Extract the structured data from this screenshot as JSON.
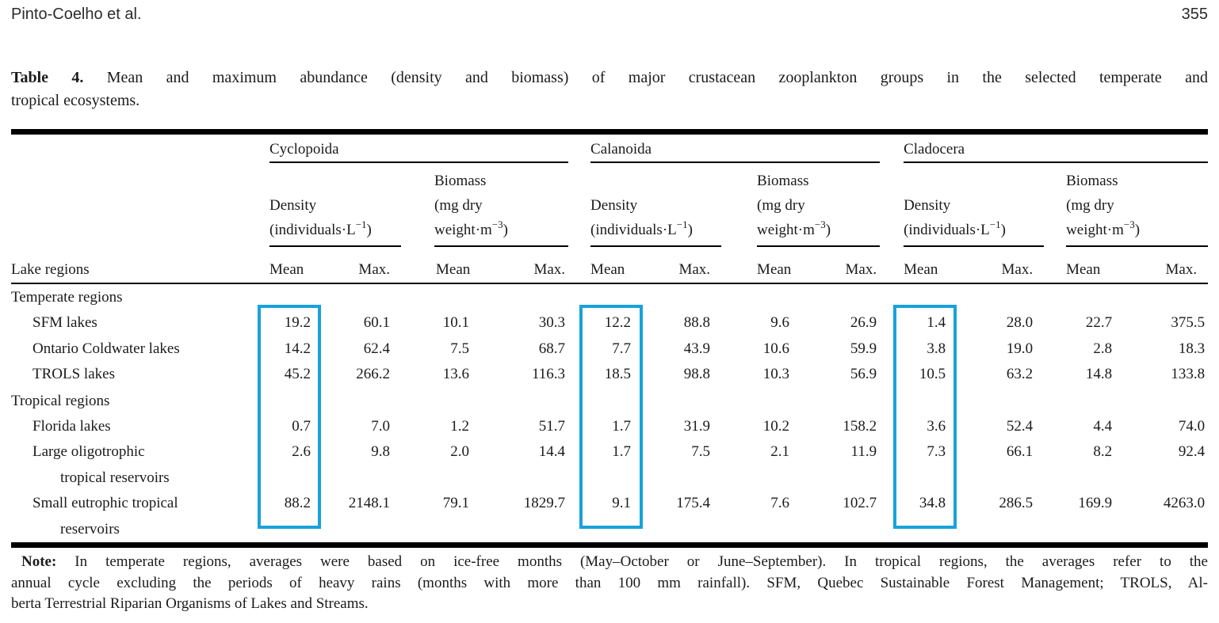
{
  "page": {
    "running_head": "Pinto-Coelho et al.",
    "page_number": "355"
  },
  "caption": {
    "label": "Table 4.",
    "line1_rest": " Mean and maximum abundance (density and biomass) of major crustacean zooplankton groups in the selected temperate and",
    "line2": "tropical ecosystems."
  },
  "table": {
    "highlight_color": "#18a2dc",
    "row_header": "Lake regions",
    "groups": [
      {
        "name": "Cyclopoida"
      },
      {
        "name": "Calanoida"
      },
      {
        "name": "Cladocera"
      }
    ],
    "subheaders": {
      "density": {
        "line1": "Density",
        "unit_pre": "(individuals·L",
        "unit_sup": "−1",
        "unit_post": ")"
      },
      "biomass": {
        "line1": "Biomass",
        "line2": "(mg dry",
        "unit_pre": "weight·m",
        "unit_sup": "−3",
        "unit_post": ")"
      }
    },
    "col_headers": {
      "mean": "Mean",
      "max": "Max."
    },
    "rows": [
      {
        "type": "section",
        "label": "Temperate regions"
      },
      {
        "type": "data",
        "label": "SFM lakes",
        "values": [
          "19.2",
          "60.1",
          "10.1",
          "30.3",
          "12.2",
          "88.8",
          "9.6",
          "26.9",
          "1.4",
          "28.0",
          "22.7",
          "375.5"
        ]
      },
      {
        "type": "data",
        "label": "Ontario Coldwater lakes",
        "values": [
          "14.2",
          "62.4",
          "7.5",
          "68.7",
          "7.7",
          "43.9",
          "10.6",
          "59.9",
          "3.8",
          "19.0",
          "2.8",
          "18.3"
        ]
      },
      {
        "type": "data",
        "label": "TROLS lakes",
        "values": [
          "45.2",
          "266.2",
          "13.6",
          "116.3",
          "18.5",
          "98.8",
          "10.3",
          "56.9",
          "10.5",
          "63.2",
          "14.8",
          "133.8"
        ]
      },
      {
        "type": "section",
        "label": "Tropical regions"
      },
      {
        "type": "data",
        "label": "Florida lakes",
        "values": [
          "0.7",
          "7.0",
          "1.2",
          "51.7",
          "1.7",
          "31.9",
          "10.2",
          "158.2",
          "3.6",
          "52.4",
          "4.4",
          "74.0"
        ]
      },
      {
        "type": "data",
        "label": "Large oligotrophic",
        "label2": "tropical reservoirs",
        "values": [
          "2.6",
          "9.8",
          "2.0",
          "14.4",
          "1.7",
          "7.5",
          "2.1",
          "11.9",
          "7.3",
          "66.1",
          "8.2",
          "92.4"
        ]
      },
      {
        "type": "data",
        "label": "Small eutrophic tropical",
        "label2": "reservoirs",
        "values": [
          "88.2",
          "2148.1",
          "79.1",
          "1829.7",
          "9.1",
          "175.4",
          "7.6",
          "102.7",
          "34.8",
          "286.5",
          "169.9",
          "4263.0"
        ]
      }
    ]
  },
  "note": {
    "label": "Note:",
    "line1_rest": " In temperate regions, averages were based on ice-free months (May–October or June–September). In tropical regions, the averages refer to the",
    "line2": "annual cycle excluding the periods of heavy rains (months with more than 100 mm rainfall). SFM, Quebec Sustainable Forest Management; TROLS, Al-",
    "line3": "berta Terrestrial Riparian Organisms of Lakes and Streams."
  }
}
